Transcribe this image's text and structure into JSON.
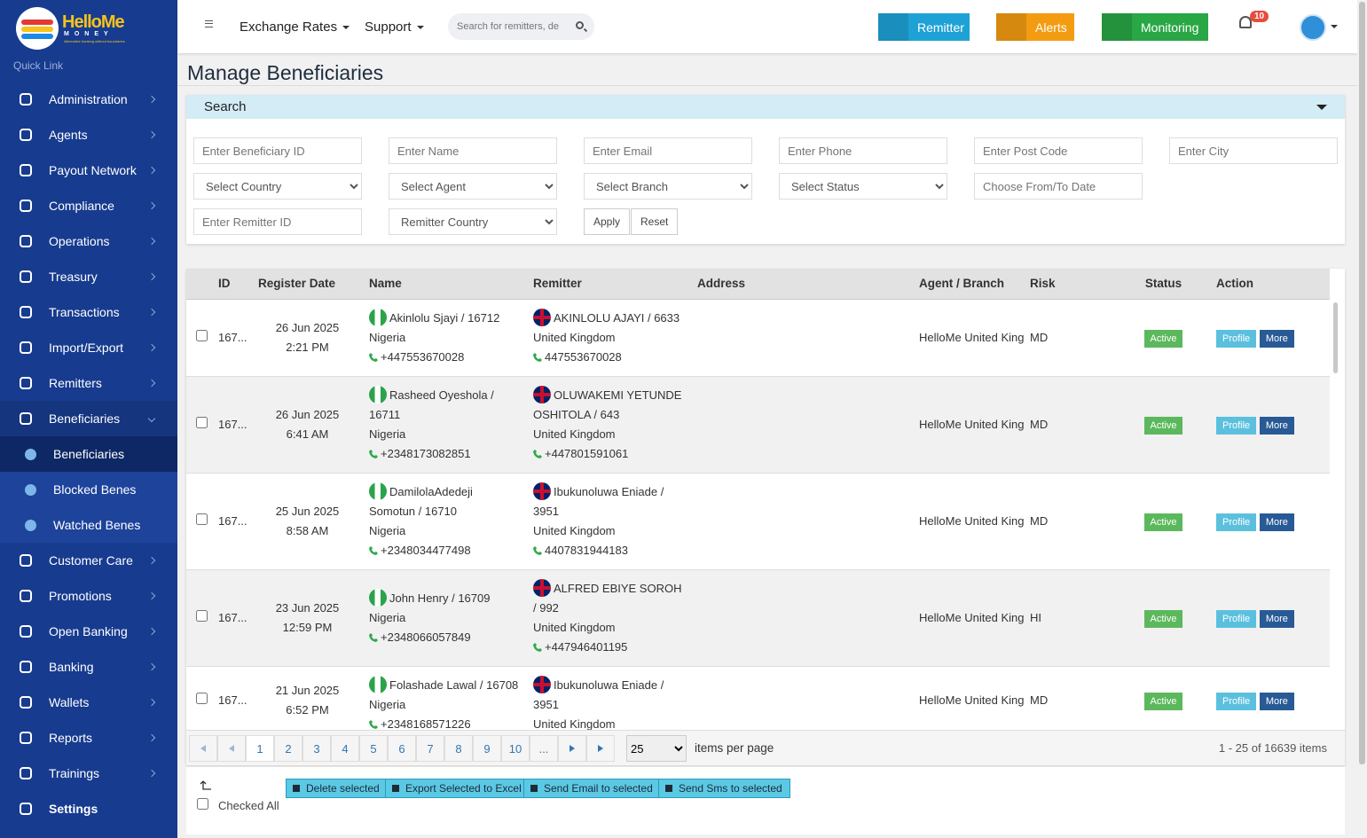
{
  "sidebar": {
    "logo": "HelloMe",
    "logo_sub": "MONEY",
    "tagline": "Alternative banking without boundaries",
    "quick_link": "Quick Link",
    "menu": [
      {
        "label": "Administration"
      },
      {
        "label": "Agents"
      },
      {
        "label": "Payout Network"
      },
      {
        "label": "Compliance"
      },
      {
        "label": "Operations"
      },
      {
        "label": "Treasury"
      },
      {
        "label": "Transactions"
      },
      {
        "label": "Import/Export"
      },
      {
        "label": "Remitters"
      },
      {
        "label": "Beneficiaries",
        "children": [
          "Beneficiaries",
          "Blocked Benes",
          "Watched Benes"
        ]
      },
      {
        "label": "Customer Care"
      },
      {
        "label": "Promotions"
      },
      {
        "label": "Open Banking"
      },
      {
        "label": "Banking"
      },
      {
        "label": "Wallets"
      },
      {
        "label": "Reports"
      },
      {
        "label": "Trainings"
      },
      {
        "label": "Settings"
      }
    ]
  },
  "topbar": {
    "nav": [
      "Exchange Rates",
      "Support"
    ],
    "search_placeholder": "Search for remitters, de",
    "buttons": [
      "Remitter",
      "Alerts",
      "Monitoring"
    ],
    "notifications": "10"
  },
  "page_title": "Manage Beneficiaries",
  "search": {
    "title": "Search",
    "inputs": [
      "Enter Beneficiary ID",
      "Enter Name",
      "Enter Email",
      "Enter Phone",
      "Enter Post Code",
      "Enter City"
    ],
    "selects": [
      "Select Country",
      "Select Agent",
      "Select Branch",
      "Select Status"
    ],
    "date_placeholder": "Choose From/To Date",
    "remitter_id_placeholder": "Enter Remitter ID",
    "remitter_country": "Remitter Country",
    "apply": "Apply",
    "reset": "Reset"
  },
  "table": {
    "headers": [
      "ID",
      "Register Date",
      "Name",
      "Remitter",
      "Address",
      "Agent / Branch",
      "Risk",
      "Status",
      "Action"
    ],
    "rows": [
      {
        "id": "167...",
        "date": "26 Jun 2025 2:21 PM",
        "name": "Akinlolu Sjayi / 16712",
        "country": "Nigeria",
        "phone": "+447553670028",
        "remitter": "AKINLOLU AJAYI / 6633",
        "remitter_country": "United Kingdom",
        "remitter_phone": "447553670028",
        "agent": "HelloMe United King",
        "risk": "MD",
        "status": "Active",
        "profile": "Profile",
        "more": "More"
      },
      {
        "id": "167...",
        "date": "26 Jun 2025 6:41 AM",
        "name": "Rasheed Oyeshola / 16711",
        "country": "Nigeria",
        "phone": "+2348173082851",
        "remitter": "OLUWAKEMI YETUNDE OSHITOLA / 643",
        "remitter_country": "United Kingdom",
        "remitter_phone": "+447801591061",
        "agent": "HelloMe United King",
        "risk": "MD",
        "status": "Active",
        "profile": "Profile",
        "more": "More"
      },
      {
        "id": "167...",
        "date": "25 Jun 2025 8:58 AM",
        "name": "DamilolaAdedeji Somotun / 16710",
        "country": "Nigeria",
        "phone": "+2348034477498",
        "remitter": "Ibukunoluwa Eniade / 3951",
        "remitter_country": "United Kingdom",
        "remitter_phone": "4407831944183",
        "agent": "HelloMe United King",
        "risk": "MD",
        "status": "Active",
        "profile": "Profile",
        "more": "More"
      },
      {
        "id": "167...",
        "date": "23 Jun 2025 12:59 PM",
        "name": "John Henry / 16709",
        "country": "Nigeria",
        "phone": "+2348066057849",
        "remitter": "ALFRED EBIYE SOROH / 992",
        "remitter_country": "United Kingdom",
        "remitter_phone": "+447946401195",
        "agent": "HelloMe United King",
        "risk": "HI",
        "status": "Active",
        "profile": "Profile",
        "more": "More"
      },
      {
        "id": "167...",
        "date": "21 Jun 2025 6:52 PM",
        "name": "Folashade Lawal / 16708",
        "country": "Nigeria",
        "phone": "+2348168571226",
        "remitter": "Ibukunoluwa Eniade / 3951",
        "remitter_country": "United Kingdom",
        "agent": "HelloMe United King",
        "risk": "MD",
        "status": "Active",
        "profile": "Profile",
        "more": "More"
      }
    ]
  },
  "pagination": {
    "pages": [
      1,
      2,
      3,
      4,
      5,
      6,
      7,
      8,
      9,
      10
    ],
    "ellipsis": "...",
    "page_size": "25",
    "per_page_label": "items per page",
    "summary": "1 - 25 of 16639 items"
  },
  "bulk": {
    "buttons": [
      "Delete selected",
      "Export Selected to Excel",
      "Send Email to selected",
      "Send Sms to selected"
    ],
    "checked_all": "Checked All"
  }
}
